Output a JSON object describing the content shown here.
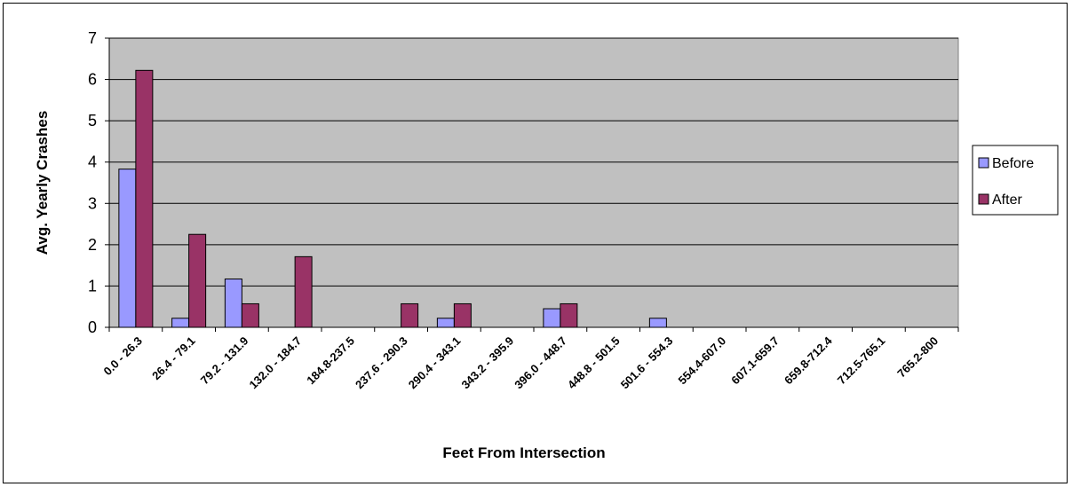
{
  "chart_data": {
    "type": "bar",
    "title": "",
    "xlabel": "Feet From Intersection",
    "ylabel": "Avg. Yearly Crashes",
    "ylim": [
      0,
      7
    ],
    "yticks": [
      0,
      1,
      2,
      3,
      4,
      5,
      6,
      7
    ],
    "grid": true,
    "legend_position": "right",
    "categories": [
      "0.0 - 26.3",
      "26.4 - 79.1",
      "79.2 - 131.9",
      "132.0 - 184.7",
      "184.8-237.5",
      "237.6 - 290.3",
      "290.4 - 343.1",
      "343.2 - 395.9",
      "396.0 - 448.7",
      "448.8 - 501.5",
      "501.6 - 554.3",
      "554.4-607.0",
      "607.1-659.7",
      "659.8-712.4",
      "712.5-765.1",
      "765.2-800"
    ],
    "series": [
      {
        "name": "Before",
        "color": "#9999FF",
        "values": [
          3.83,
          0.22,
          1.17,
          0,
          0,
          0,
          0.22,
          0,
          0.45,
          0,
          0.22,
          0,
          0,
          0,
          0,
          0
        ]
      },
      {
        "name": "After",
        "color": "#993366",
        "values": [
          6.22,
          2.25,
          0.57,
          1.71,
          0,
          0.57,
          0.57,
          0,
          0.57,
          0,
          0,
          0,
          0,
          0,
          0,
          0
        ]
      }
    ],
    "plot_background": "#C0C0C0"
  }
}
